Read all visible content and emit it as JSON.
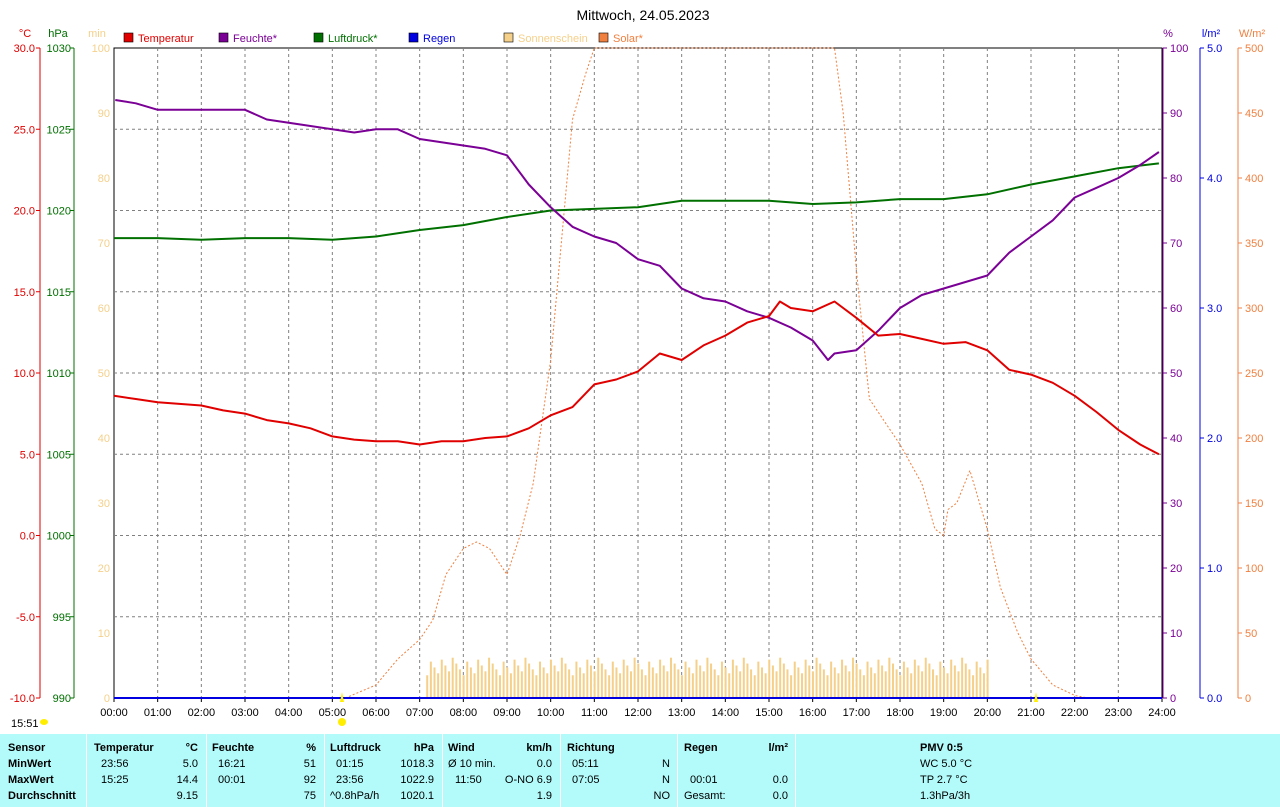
{
  "title": "Mittwoch, 24.05.2023",
  "colors": {
    "temperature": "#e00000",
    "humidity": "#7b0096",
    "pressure": "#007000",
    "rain": "#0000e0",
    "sunshine": "#f5d08a",
    "solar": "#f08040",
    "stats_bg": "#b3fbfb"
  },
  "legend": [
    {
      "label": "Temperatur",
      "color": "#e00000"
    },
    {
      "label": "Feuchte*",
      "color": "#7b0096"
    },
    {
      "label": "Luftdruck*",
      "color": "#007000"
    },
    {
      "label": "Regen",
      "color": "#0000e0"
    },
    {
      "label": "Sonnenschein",
      "color": "#f5d08a"
    },
    {
      "label": "Solar*",
      "color": "#f08040"
    }
  ],
  "axis_units": {
    "temp": "°C",
    "pressure": "hPa",
    "sun": "min",
    "humidity": "%",
    "rain": "l/m²",
    "solar": "W/m²"
  },
  "axes": {
    "temp": {
      "ticks": [
        "30.0",
        "25.0",
        "20.0",
        "15.0",
        "10.0",
        "5.0",
        "0.0",
        "-5.0",
        "-10.0"
      ],
      "range": [
        -10,
        30
      ]
    },
    "pressure": {
      "ticks": [
        "1030",
        "1025",
        "1020",
        "1015",
        "1010",
        "1005",
        "1000",
        "995",
        "990"
      ],
      "range": [
        990,
        1030
      ]
    },
    "sun": {
      "ticks": [
        "100",
        "90",
        "80",
        "70",
        "60",
        "50",
        "40",
        "30",
        "20",
        "10",
        "0"
      ],
      "range": [
        0,
        100
      ]
    },
    "humidity": {
      "ticks": [
        "100",
        "90",
        "80",
        "70",
        "60",
        "50",
        "40",
        "30",
        "20",
        "10",
        "0"
      ],
      "range": [
        0,
        100
      ]
    },
    "rain": {
      "ticks": [
        "5.0",
        "4.0",
        "3.0",
        "2.0",
        "1.0",
        "0.0"
      ],
      "range": [
        0,
        5
      ]
    },
    "solar": {
      "ticks": [
        "500",
        "450",
        "400",
        "350",
        "300",
        "250",
        "200",
        "150",
        "100",
        "50",
        "0"
      ],
      "range": [
        0,
        500
      ]
    }
  },
  "x_ticks": [
    "00:00",
    "01:00",
    "02:00",
    "03:00",
    "04:00",
    "05:00",
    "06:00",
    "07:00",
    "08:00",
    "09:00",
    "10:00",
    "11:00",
    "12:00",
    "13:00",
    "14:00",
    "15:00",
    "16:00",
    "17:00",
    "18:00",
    "19:00",
    "20:00",
    "21:00",
    "22:00",
    "23:00",
    "24:00"
  ],
  "bottom_notes": {
    "time": "15:51"
  },
  "chart_data": {
    "type": "line",
    "title": "Mittwoch, 24.05.2023",
    "x_unit": "hour",
    "xlim": [
      0,
      24
    ],
    "grid": true,
    "legend_position": "top",
    "series": [
      {
        "name": "Temperatur",
        "axis": "temp",
        "unit": "°C",
        "x": [
          0,
          0.5,
          1,
          1.5,
          2,
          2.5,
          3,
          3.5,
          4,
          4.5,
          5,
          5.5,
          6,
          6.5,
          7,
          7.5,
          8,
          8.5,
          9,
          9.5,
          10,
          10.5,
          11,
          11.5,
          12,
          12.5,
          13,
          13.5,
          14,
          14.5,
          15,
          15.25,
          15.5,
          16,
          16.5,
          17,
          17.5,
          18,
          18.5,
          19,
          19.5,
          20,
          20.5,
          21,
          21.5,
          22,
          22.5,
          23,
          23.5,
          23.93
        ],
        "y": [
          8.6,
          8.4,
          8.2,
          8.1,
          8.0,
          7.7,
          7.5,
          7.1,
          6.9,
          6.6,
          6.1,
          5.9,
          5.8,
          5.8,
          5.6,
          5.8,
          5.8,
          6.0,
          6.1,
          6.6,
          7.4,
          7.9,
          9.3,
          9.6,
          10.1,
          11.2,
          10.8,
          11.7,
          12.3,
          13.1,
          13.5,
          14.4,
          14.0,
          13.8,
          14.4,
          13.4,
          12.3,
          12.4,
          12.1,
          11.8,
          11.9,
          11.4,
          10.2,
          9.9,
          9.4,
          8.6,
          7.6,
          6.5,
          5.6,
          5.0
        ]
      },
      {
        "name": "Feuchte*",
        "axis": "humidity",
        "unit": "%",
        "x": [
          0.03,
          0.5,
          1,
          1.5,
          2,
          2.5,
          3,
          3.5,
          4,
          4.5,
          5,
          5.5,
          6,
          6.5,
          7,
          7.5,
          8,
          8.5,
          9,
          9.5,
          10,
          10.5,
          11,
          11.5,
          12,
          12.5,
          13,
          13.5,
          14,
          14.5,
          15,
          15.5,
          16,
          16.35,
          16.5,
          17,
          17.5,
          18,
          18.5,
          19,
          19.5,
          20,
          20.5,
          21,
          21.5,
          22,
          22.5,
          23,
          23.5,
          23.93
        ],
        "y": [
          92,
          91.5,
          90.5,
          90.5,
          90.5,
          90.5,
          90.5,
          89.0,
          88.5,
          88.0,
          87.5,
          87.0,
          87.5,
          87.5,
          86.0,
          85.5,
          85.0,
          84.5,
          83.5,
          79.0,
          75.5,
          72.5,
          71.0,
          70.0,
          67.5,
          66.5,
          63.0,
          61.5,
          61.0,
          59.5,
          58.5,
          57.0,
          55.0,
          52.0,
          53.0,
          53.5,
          56.5,
          60.0,
          62.0,
          63.0,
          64.0,
          65.0,
          68.5,
          71.0,
          73.5,
          77.0,
          78.5,
          80.0,
          82.0,
          84.0
        ]
      },
      {
        "name": "Luftdruck*",
        "axis": "pressure",
        "unit": "hPa",
        "x": [
          0,
          1,
          2,
          3,
          4,
          5,
          6,
          7,
          8,
          9,
          10,
          11,
          12,
          13,
          14,
          15,
          16,
          17,
          18,
          19,
          20,
          21,
          22,
          23,
          23.93
        ],
        "y": [
          1018.3,
          1018.3,
          1018.2,
          1018.3,
          1018.3,
          1018.2,
          1018.4,
          1018.8,
          1019.1,
          1019.6,
          1020.0,
          1020.1,
          1020.2,
          1020.6,
          1020.6,
          1020.6,
          1020.4,
          1020.5,
          1020.7,
          1020.7,
          1021.0,
          1021.6,
          1022.1,
          1022.6,
          1022.9
        ]
      },
      {
        "name": "Regen",
        "axis": "rain",
        "unit": "l/m²",
        "x": [
          0,
          24
        ],
        "y": [
          0.0,
          0.0
        ]
      },
      {
        "name": "Solar*",
        "axis": "solar",
        "unit": "W/m²",
        "x": [
          5.3,
          6,
          6.5,
          7,
          7.3,
          7.6,
          8,
          8.3,
          8.6,
          9,
          9.3,
          9.6,
          10,
          10.5,
          10.8,
          11,
          11.5,
          12,
          13,
          14,
          15,
          16,
          16.5,
          16.7,
          17,
          17.3,
          17.6,
          18,
          18.5,
          18.8,
          19,
          19.1,
          19.3,
          19.6,
          20,
          20.3,
          20.7,
          21,
          21.5,
          22,
          22.3
        ],
        "y": [
          0,
          10,
          30,
          45,
          60,
          95,
          115,
          120,
          115,
          95,
          125,
          165,
          260,
          445,
          480,
          500,
          500,
          500,
          500,
          500,
          500,
          500,
          500,
          450,
          330,
          230,
          215,
          195,
          165,
          130,
          125,
          145,
          150,
          175,
          130,
          85,
          50,
          30,
          10,
          2,
          0
        ]
      },
      {
        "name": "Sonnenschein",
        "axis": "sun",
        "unit": "min",
        "x_range": [
          7.15,
          20.0
        ],
        "y_typical": 5.5,
        "y_range": [
          3.5,
          6.5
        ]
      }
    ]
  },
  "stats": {
    "headers": {
      "sensor": "Sensor",
      "temp": "Temperatur",
      "temp_unit": "°C",
      "hum": "Feuchte",
      "hum_unit": "%",
      "press": "Luftdruck",
      "press_unit": "hPa",
      "wind": "Wind",
      "wind_unit": "km/h",
      "dir": "Richtung",
      "rain": "Regen",
      "rain_unit": "l/m²",
      "pmv": "PMV 0:5"
    },
    "rows": {
      "min": {
        "label": "MinWert",
        "temp_time": "23:56",
        "temp_val": "5.0",
        "hum_time": "16:21",
        "hum_val": "51",
        "press_time": "01:15",
        "press_val": "1018.3",
        "wind_label": "Ø 10 min.",
        "wind_val": "0.0",
        "dir_time": "05:11",
        "dir_val": "N",
        "rain_time": "",
        "rain_val": "",
        "pmv": "WC 5.0 °C"
      },
      "max": {
        "label": "MaxWert",
        "temp_time": "15:25",
        "temp_val": "14.4",
        "hum_time": "00:01",
        "hum_val": "92",
        "press_time": "23:56",
        "press_val": "1022.9",
        "wind_label": "11:50",
        "wind_val": "O-NO 6.9",
        "dir_time": "07:05",
        "dir_val": "N",
        "rain_time": "00:01",
        "rain_val": "0.0",
        "pmv": "TP 2.7 °C"
      },
      "avg": {
        "label": "Durchschnitt",
        "temp_time": "",
        "temp_val": "9.15",
        "hum_time": "",
        "hum_val": "75",
        "press_time": "^0.8hPa/h",
        "press_val": "1020.1",
        "wind_label": "",
        "wind_val": "1.9",
        "dir_time": "",
        "dir_val": "NO",
        "rain_time": "Gesamt:",
        "rain_val": "0.0",
        "pmv": "1.3hPa/3h"
      }
    }
  }
}
